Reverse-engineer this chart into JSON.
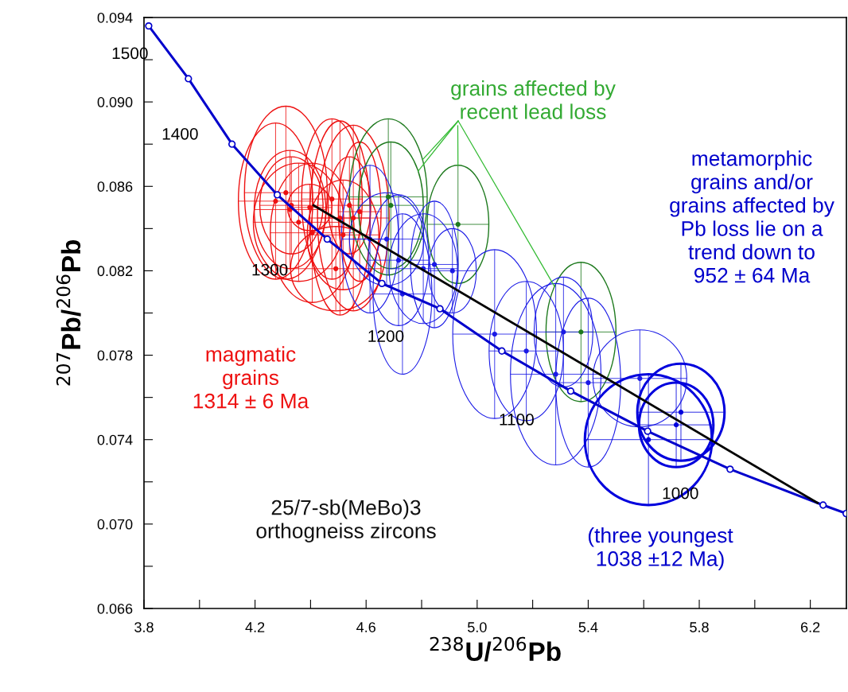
{
  "chart_data": {
    "type": "scatter",
    "xlabel": "$^{238}$U/$^{206}$Pb",
    "ylabel": "$^{207}$Pb/$^{206}$Pb",
    "xlim": [
      3.8,
      6.33
    ],
    "ylim": [
      0.066,
      0.094
    ],
    "xticks": [
      {
        "value": 3.8,
        "label": "3.8"
      },
      {
        "value": 4.0,
        "label": null
      },
      {
        "value": 4.2,
        "label": "4.2"
      },
      {
        "value": 4.4,
        "label": null
      },
      {
        "value": 4.6,
        "label": "4.6"
      },
      {
        "value": 4.8,
        "label": null
      },
      {
        "value": 5.0,
        "label": "5.0"
      },
      {
        "value": 5.2,
        "label": null
      },
      {
        "value": 5.4,
        "label": "5.4"
      },
      {
        "value": 5.6,
        "label": null
      },
      {
        "value": 5.8,
        "label": "5.8"
      },
      {
        "value": 6.0,
        "label": null
      },
      {
        "value": 6.2,
        "label": "6.2"
      }
    ],
    "yticks": [
      {
        "value": 0.066,
        "label": "0.066"
      },
      {
        "value": 0.068,
        "label": null
      },
      {
        "value": 0.07,
        "label": "0.070"
      },
      {
        "value": 0.072,
        "label": null
      },
      {
        "value": 0.074,
        "label": "0.074"
      },
      {
        "value": 0.076,
        "label": null
      },
      {
        "value": 0.078,
        "label": "0.078"
      },
      {
        "value": 0.08,
        "label": null
      },
      {
        "value": 0.082,
        "label": "0.082"
      },
      {
        "value": 0.084,
        "label": null
      },
      {
        "value": 0.086,
        "label": "0.086"
      },
      {
        "value": 0.088,
        "label": null
      },
      {
        "value": 0.09,
        "label": "0.090"
      },
      {
        "value": 0.092,
        "label": null
      },
      {
        "value": 0.094,
        "label": "0.094"
      }
    ],
    "grid": false,
    "legend": false,
    "series": [
      {
        "type": "line",
        "color": "#0000cc",
        "marker": "circle",
        "line_style": "solid",
        "x": [
          3.817,
          3.96,
          4.117,
          4.28,
          4.46,
          4.657,
          4.866,
          5.089,
          5.337,
          5.614,
          5.911,
          6.246,
          6.329
        ],
        "values": [
          0.0936,
          0.0911,
          0.088,
          0.0856,
          0.0835,
          0.0814,
          0.0802,
          0.0782,
          0.0763,
          0.0744,
          0.0726,
          0.0709,
          0.0705
        ]
      },
      {
        "type": "line",
        "color": "#000000",
        "marker": "none",
        "line_style": "solid",
        "x": [
          4.411,
          6.226
        ],
        "values": [
          0.0851,
          0.071
        ]
      },
      {
        "color": "#ee1111",
        "marker": "circle",
        "x": [
          4.274,
          4.311,
          4.326,
          4.331,
          4.397,
          4.477,
          4.506,
          4.554,
          4.406,
          4.357,
          4.54,
          4.577,
          4.491,
          4.517
        ],
        "values": [
          0.0853,
          0.0857,
          0.0849,
          0.0851,
          0.085,
          0.0854,
          0.0845,
          0.0845,
          0.0838,
          0.0843,
          0.0851,
          0.0848,
          0.0821,
          0.0837
        ],
        "xerrors": [
          0.134,
          0.149,
          0.129,
          0.114,
          0.08,
          0.109,
          0.109,
          0.129,
          0.151,
          0.163,
          0.077,
          0.077,
          0.163,
          0.129
        ],
        "errors": [
          0.0037,
          0.0041,
          0.0028,
          0.0023,
          0.0011,
          0.0038,
          0.0046,
          0.0044,
          0.0033,
          0.0028,
          0.0023,
          0.0033,
          0.002,
          0.0026
        ]
      },
      {
        "color": "#1e7a1e",
        "marker": "circle",
        "x": [
          4.68,
          4.689,
          4.931,
          5.374
        ],
        "values": [
          0.0855,
          0.0851,
          0.0842,
          0.0791
        ],
        "xerrors": [
          0.14,
          0.117,
          0.111,
          0.126
        ],
        "errors": [
          0.0037,
          0.003,
          0.0028,
          0.0033
        ]
      },
      {
        "color": "#1a1ae6",
        "marker": "circle",
        "x": [
          4.614,
          4.674,
          4.731,
          4.806,
          4.846,
          4.911,
          5.063,
          5.177,
          5.283,
          5.311,
          5.4,
          5.586,
          4.717
        ],
        "values": [
          0.0835,
          0.0835,
          0.0809,
          0.0821,
          0.0823,
          0.082,
          0.079,
          0.0782,
          0.0771,
          0.0791,
          0.0767,
          0.0769,
          0.0825
        ],
        "xerrors": [
          0.103,
          0.134,
          0.106,
          0.123,
          0.086,
          0.086,
          0.151,
          0.134,
          0.163,
          0.106,
          0.117,
          0.169,
          0.109
        ],
        "errors": [
          0.0035,
          0.0022,
          0.0038,
          0.0026,
          0.003,
          0.002,
          0.004,
          0.0033,
          0.0043,
          0.0026,
          0.004,
          0.0023,
          0.0031
        ]
      },
      {
        "color": "#0000dd",
        "marker": "circle",
        "x": [
          5.617,
          5.734,
          5.717
        ],
        "values": [
          0.074,
          0.0753,
          0.0747
        ],
        "xerrors": [
          0.229,
          0.157,
          0.134
        ],
        "errors": [
          0.0031,
          0.0023,
          0.002
        ]
      }
    ],
    "annotations": [
      {
        "text": "1500",
        "x": 3.817,
        "y": 0.0936
      },
      {
        "text": "1400",
        "x": 4.117,
        "y": 0.088
      },
      {
        "text": "1300",
        "x": 4.46,
        "y": 0.0835
      },
      {
        "text": "1200",
        "x": 4.866,
        "y": 0.0802
      },
      {
        "text": "1100",
        "x": 5.337,
        "y": 0.0763
      },
      {
        "text": "1000",
        "x": 5.911,
        "y": 0.0726
      },
      {
        "text": "grains affected by\nrecent lead loss",
        "x": 4.931,
        "y": 0.087
      },
      "metamorphic\ngrains and/or\ngrains affected by\nPb loss lie on a\ntrend down to\n952 ± 64 Ma",
      "magmatic\ngrains\n1314 ± 6 Ma",
      "25/7-sb(MeBo)3\northogneiss zircons",
      "(three youngest\n1038 ±12 Ma)"
    ]
  }
}
